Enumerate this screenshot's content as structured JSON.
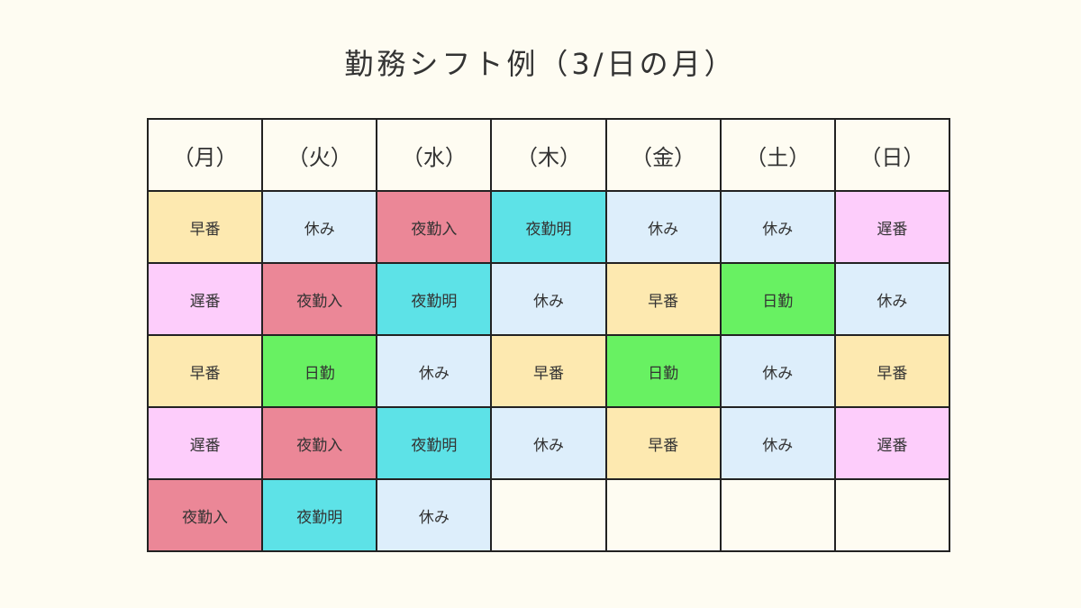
{
  "title": "勤務シフト例（3/日の月）",
  "days": [
    "（月）",
    "（火）",
    "（水）",
    "（木）",
    "（金）",
    "（土）",
    "（日）"
  ],
  "shift_colors": {
    "早番": "#fde9b0",
    "休み": "#ddeefb",
    "夜勤入": "#eb8797",
    "夜勤明": "#5de2e7",
    "遅番": "#fdcdfb",
    "日勤": "#68f162",
    "": "#fefcf2"
  },
  "shift_icons": {
    "早番": "early-shift",
    "休み": "day-off",
    "夜勤入": "night-shift-start",
    "夜勤明": "night-shift-end",
    "遅番": "late-shift",
    "日勤": "day-shift",
    "": "empty"
  },
  "rows": [
    [
      "早番",
      "休み",
      "夜勤入",
      "夜勤明",
      "休み",
      "休み",
      "遅番"
    ],
    [
      "遅番",
      "夜勤入",
      "夜勤明",
      "休み",
      "早番",
      "日勤",
      "休み"
    ],
    [
      "早番",
      "日勤",
      "休み",
      "早番",
      "日勤",
      "休み",
      "早番"
    ],
    [
      "遅番",
      "夜勤入",
      "夜勤明",
      "休み",
      "早番",
      "休み",
      "遅番"
    ],
    [
      "夜勤入",
      "夜勤明",
      "休み",
      "",
      "",
      "",
      ""
    ]
  ]
}
